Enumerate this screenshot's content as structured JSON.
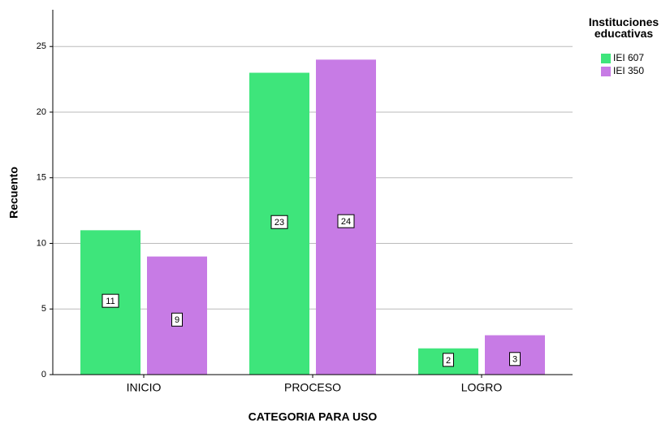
{
  "chart_data": {
    "type": "bar",
    "x_label": "CATEGORIA PARA USO",
    "y_label": "Recuento",
    "legend_title": "Instituciones educativas",
    "categories": [
      "INICIO",
      "PROCESO",
      "LOGRO"
    ],
    "series": [
      {
        "name": "IEI 607",
        "color": "#3ee57b",
        "values": [
          11,
          23,
          2
        ]
      },
      {
        "name": "IEI 350",
        "color": "#c77be5",
        "values": [
          9,
          24,
          3
        ]
      }
    ],
    "ylim": [
      0,
      27.8
    ],
    "yticks": [
      0,
      5,
      10,
      15,
      20,
      25
    ],
    "grid": true,
    "legend": "right"
  }
}
